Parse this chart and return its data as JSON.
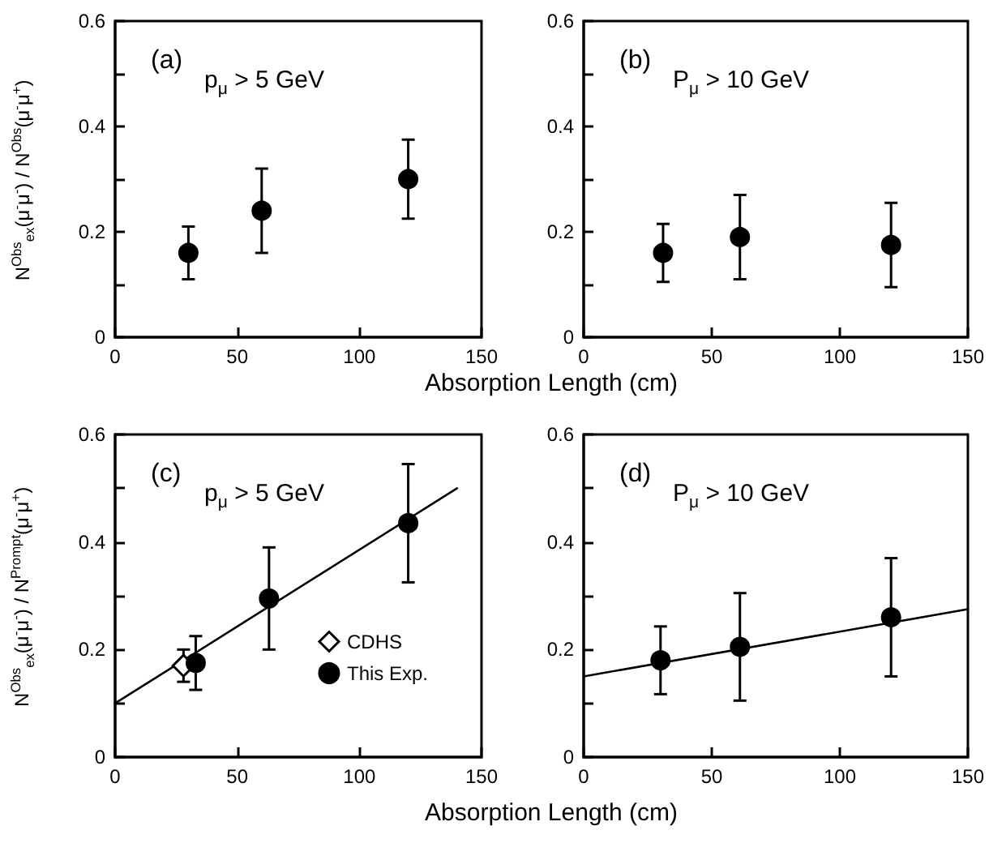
{
  "chart_data": [
    {
      "type": "scatter",
      "annotations": [
        "(a)",
        "p$_{μ}$ > 5 GeV"
      ],
      "ylabel": "N$^{Obs}$$_{ex}$(μ$^{-}$μ$^{-}$) / N$^{Obs}$(μ$^{-}$μ$^{+}$)",
      "xlim": [
        0,
        150
      ],
      "xticks": [
        0,
        50,
        100,
        150
      ],
      "ylim": [
        0,
        0.6
      ],
      "yticks": [
        0,
        {
          "value": 0.1,
          "label": null
        },
        0.2,
        {
          "value": 0.3,
          "label": null
        },
        0.4,
        {
          "value": 0.5,
          "label": null
        },
        0.6
      ],
      "grid": false,
      "legend": false,
      "series": [
        {
          "color": "#000000",
          "marker": "circle",
          "x": [
            30,
            60,
            120
          ],
          "values": [
            0.16,
            0.24,
            0.3
          ],
          "errors": [
            0.05,
            0.08,
            0.075
          ]
        }
      ]
    },
    {
      "type": "scatter",
      "annotations": [
        "(b)",
        "P$_{μ}$ > 10 GeV"
      ],
      "xlabel": "Absorption Length (cm)",
      "xlim": [
        0,
        150
      ],
      "xticks": [
        0,
        50,
        100,
        150
      ],
      "ylim": [
        0,
        0.6
      ],
      "yticks": [
        0,
        {
          "value": 0.1,
          "label": null
        },
        0.2,
        {
          "value": 0.3,
          "label": null
        },
        0.4,
        {
          "value": 0.5,
          "label": null
        },
        0.6
      ],
      "grid": false,
      "legend": false,
      "series": [
        {
          "color": "#000000",
          "marker": "circle",
          "x": [
            31,
            61,
            120
          ],
          "values": [
            0.16,
            0.19,
            0.175
          ],
          "errors": [
            0.055,
            0.08,
            0.08
          ]
        }
      ]
    },
    {
      "type": "scatter",
      "annotations": [
        "(c)",
        "p$_{μ}$ > 5 GeV"
      ],
      "ylabel": "N$^{Obs}$$_{ex}$(μ$^{-}$μ$^{-}$) / N$^{Prompt}$(μ$^{-}$μ$^{+}$)",
      "xlim": [
        0,
        150
      ],
      "xticks": [
        0,
        50,
        100,
        150
      ],
      "ylim": [
        0,
        0.6
      ],
      "yticks": [
        0,
        {
          "value": 0.1,
          "label": null
        },
        0.2,
        {
          "value": 0.3,
          "label": null
        },
        0.4,
        {
          "value": 0.5,
          "label": null
        },
        0.6
      ],
      "grid": false,
      "legend": "bottom right",
      "series": [
        {
          "type": "line",
          "color": "#000000",
          "marker": "none",
          "line_style": "solid",
          "x": [
            0,
            140
          ],
          "values": [
            0.1,
            0.5
          ]
        },
        {
          "name": "CDHS",
          "color": "#000000",
          "marker": "diamond",
          "x": [
            28
          ],
          "values": [
            0.17
          ],
          "errors": [
            0.03
          ]
        },
        {
          "name": "This Exp.",
          "color": "#000000",
          "marker": "circle",
          "x": [
            33,
            63,
            120
          ],
          "values": [
            0.175,
            0.295,
            0.435
          ],
          "errors": [
            0.05,
            0.095,
            0.11
          ]
        }
      ]
    },
    {
      "type": "scatter",
      "annotations": [
        "(d)",
        "P$_{μ}$ > 10 GeV"
      ],
      "xlabel": "Absorption Length (cm)",
      "xlim": [
        0,
        150
      ],
      "xticks": [
        0,
        50,
        100,
        150
      ],
      "ylim": [
        0,
        0.6
      ],
      "yticks": [
        0,
        {
          "value": 0.1,
          "label": null
        },
        0.2,
        {
          "value": 0.3,
          "label": null
        },
        0.4,
        {
          "value": 0.5,
          "label": null
        },
        0.6
      ],
      "grid": false,
      "legend": false,
      "series": [
        {
          "type": "line",
          "color": "#000000",
          "marker": "none",
          "line_style": "solid",
          "x": [
            0,
            150
          ],
          "values": [
            0.15,
            0.275
          ]
        },
        {
          "color": "#000000",
          "marker": "circle",
          "x": [
            30,
            61,
            120
          ],
          "values": [
            0.18,
            0.205,
            0.26
          ],
          "errors": [
            0.063,
            0.1,
            0.11
          ]
        }
      ]
    }
  ]
}
